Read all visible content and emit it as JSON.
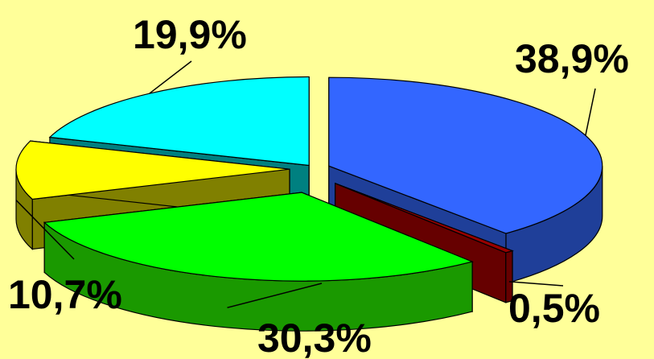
{
  "chart_data": {
    "type": "pie",
    "style": "3d-exploded",
    "slices": [
      {
        "label": "38,9%",
        "value": 38.9,
        "color": "#3366ff",
        "side_color": "#1f3f99"
      },
      {
        "label": "0,5%",
        "value": 0.5,
        "color": "#990000",
        "side_color": "#660000"
      },
      {
        "label": "30,3%",
        "value": 30.3,
        "color": "#00ff00",
        "side_color": "#1a9900"
      },
      {
        "label": "10,7%",
        "value": 10.7,
        "color": "#ffff00",
        "side_color": "#808000"
      },
      {
        "label": "19,9%",
        "value": 19.9,
        "color": "#00ffff",
        "side_color": "#008080"
      }
    ],
    "legend": "none"
  },
  "colors": {
    "background": "#ffff99"
  }
}
